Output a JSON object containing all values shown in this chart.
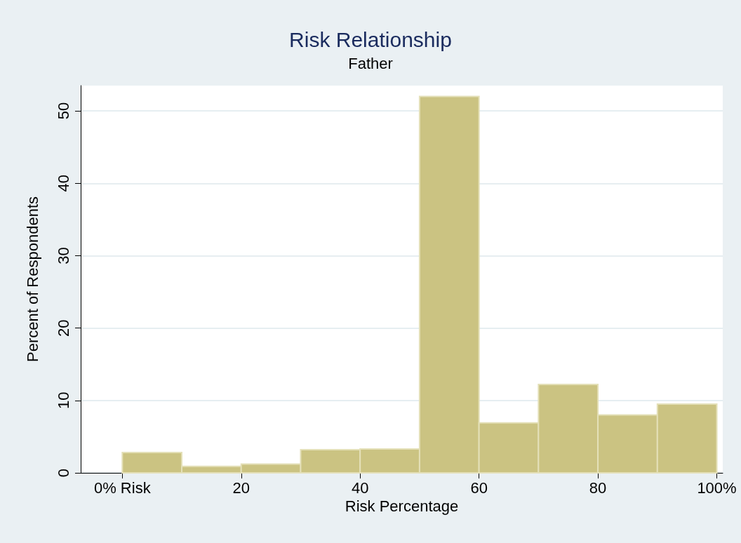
{
  "chart_data": {
    "type": "histogram",
    "title": "Risk Relationship",
    "subtitle": "Father",
    "xlabel": "Risk Percentage",
    "ylabel": "Percent of Respondents",
    "bins": [
      0,
      10,
      20,
      30,
      40,
      50,
      60,
      70,
      80,
      90,
      100
    ],
    "values": [
      2.8,
      0.9,
      1.2,
      3.2,
      3.3,
      52,
      6.9,
      12.2,
      8.0,
      9.5
    ],
    "color": "#cbc382",
    "xlim": [
      -7,
      101
    ],
    "xticks": [
      {
        "value": 0,
        "label": "0% Risk"
      },
      20,
      40,
      60,
      80,
      {
        "value": 100,
        "label": "100%"
      }
    ],
    "ylim": [
      0,
      53.5
    ],
    "yticks": [
      0,
      10,
      20,
      30,
      40,
      50
    ],
    "grid": "y"
  }
}
